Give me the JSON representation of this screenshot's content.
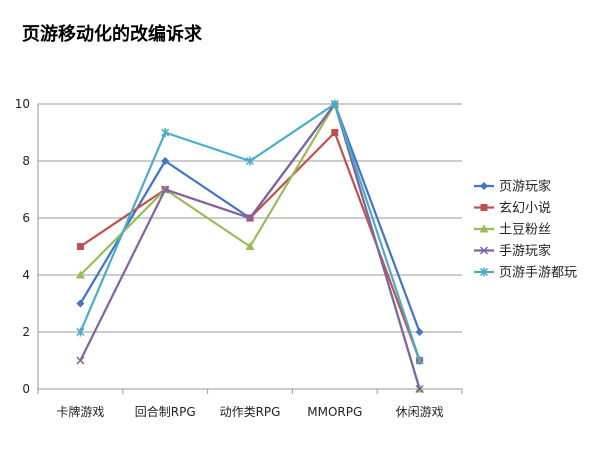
{
  "chart_data": {
    "type": "line",
    "title": "页游移动化的改编诉求",
    "xlabel": "",
    "ylabel": "",
    "categories": [
      "卡牌游戏",
      "回合制RPG",
      "动作类RPG",
      "MMORPG",
      "休闲游戏"
    ],
    "ylim": [
      0,
      10
    ],
    "yticks": [
      0,
      2,
      4,
      6,
      8,
      10
    ],
    "grid": true,
    "legend_position": "right",
    "series": [
      {
        "name": "页游玩家",
        "values": [
          3,
          8,
          6,
          10,
          2
        ],
        "color": "#4472C4",
        "marker": "diamond"
      },
      {
        "name": "玄幻小说",
        "values": [
          5,
          7,
          6,
          9,
          1
        ],
        "color": "#C0504D",
        "marker": "square"
      },
      {
        "name": "土豆粉丝",
        "values": [
          4,
          7,
          5,
          10,
          0
        ],
        "color": "#9BBB59",
        "marker": "triangle"
      },
      {
        "name": "手游玩家",
        "values": [
          1,
          7,
          6,
          10,
          0
        ],
        "color": "#8064A2",
        "marker": "x"
      },
      {
        "name": "页游手游都玩",
        "values": [
          2,
          9,
          8,
          10,
          1
        ],
        "color": "#4BACC6",
        "marker": "star"
      }
    ]
  }
}
